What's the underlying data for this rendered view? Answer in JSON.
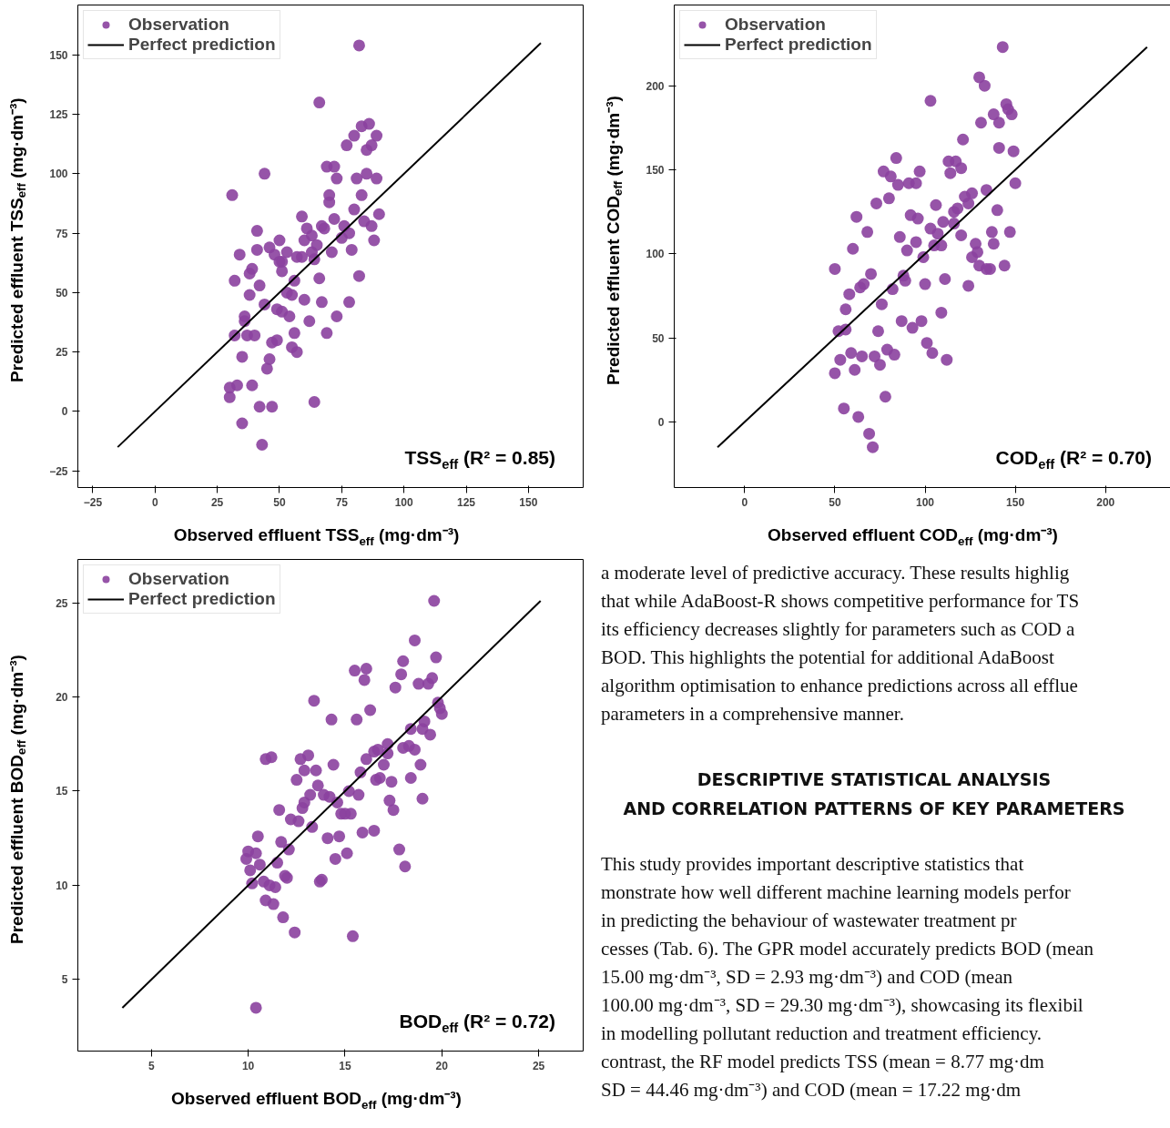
{
  "chart_data": [
    {
      "type": "scatter",
      "xlabel": "Observed effluent TSS$_{eff}$ (mg·dm⁻³)",
      "ylabel": "Predicted effluent TSS$_{eff}$ (mg·dm⁻³)",
      "annotations": [
        "TSS$_{eff}$ (R² = 0.85)"
      ],
      "xlim": [
        -31,
        172
      ],
      "ylim": [
        -32,
        171
      ],
      "xticks": [
        {
          "value": -25,
          "label": "−25"
        },
        0,
        25,
        50,
        75,
        100,
        125,
        150
      ],
      "yticks": [
        {
          "value": -25,
          "label": "−25"
        },
        0,
        25,
        50,
        75,
        100,
        125,
        150
      ],
      "grid": false,
      "legend": "top left",
      "series": [
        {
          "name": "Observation",
          "type": "scatter",
          "marker": "circle",
          "color": "#8b419f",
          "x": [
            82,
            66,
            83,
            86,
            80,
            89,
            77,
            87,
            85,
            69,
            72,
            44,
            73,
            81,
            85,
            89,
            31,
            70,
            70,
            83,
            80,
            90,
            59,
            72,
            84,
            87,
            67,
            68,
            76,
            61,
            63,
            78,
            75,
            41,
            60,
            50,
            65,
            88,
            46,
            41,
            53,
            63,
            71,
            79,
            34,
            48,
            57,
            59,
            64,
            51,
            50,
            39,
            38,
            51,
            32,
            66,
            82,
            56,
            42,
            38,
            53,
            55,
            60,
            67,
            78,
            44,
            49,
            51,
            54,
            73,
            36,
            36,
            62,
            32,
            37,
            40,
            56,
            69,
            49,
            47,
            55,
            57,
            35,
            46,
            45,
            33,
            30,
            39,
            30,
            42,
            47,
            64,
            35,
            43
          ],
          "values": [
            154,
            130,
            120,
            121,
            116,
            116,
            112,
            112,
            110,
            103,
            103,
            100,
            98,
            98,
            100,
            98,
            91,
            91,
            88,
            91,
            85,
            83,
            82,
            81,
            80,
            78,
            78,
            77,
            78,
            77,
            74,
            75,
            73,
            76,
            72,
            72,
            70,
            72,
            69,
            68,
            67,
            67,
            67,
            68,
            66,
            66,
            65,
            65,
            64,
            63,
            63,
            60,
            58,
            59,
            55,
            56,
            57,
            55,
            53,
            49,
            50,
            49,
            47,
            46,
            46,
            45,
            43,
            42,
            40,
            40,
            40,
            38,
            38,
            32,
            32,
            32,
            33,
            33,
            30,
            29,
            27,
            25,
            23,
            22,
            18,
            11,
            10,
            11,
            6,
            2,
            2,
            4,
            -5,
            -14
          ]
        },
        {
          "name": "Perfect prediction",
          "type": "line",
          "color": "#000000",
          "line_style": "solid",
          "x": [
            -15,
            155
          ],
          "values": [
            -15,
            155
          ]
        }
      ]
    },
    {
      "type": "scatter",
      "xlabel": "Observed effluent COD$_{eff}$ (mg·dm⁻³)",
      "ylabel": "Predicted effluent COD$_{eff}$ (mg·dm⁻³)",
      "annotations": [
        "COD$_{eff}$ (R² = 0.70)"
      ],
      "xlim": [
        -39,
        241
      ],
      "ylim": [
        -39,
        248
      ],
      "xticks": [
        0,
        50,
        100,
        150,
        200
      ],
      "yticks": [
        0,
        50,
        100,
        150,
        200
      ],
      "grid": false,
      "legend": "top left",
      "series": [
        {
          "name": "Observation",
          "type": "scatter",
          "marker": "circle",
          "color": "#8b419f",
          "x": [
            143,
            130,
            133,
            103,
            145,
            146,
            148,
            138,
            141,
            131,
            121,
            141,
            149,
            84,
            113,
            117,
            120,
            114,
            77,
            81,
            97,
            85,
            91,
            95,
            150,
            73,
            80,
            122,
            126,
            124,
            134,
            106,
            140,
            62,
            92,
            96,
            116,
            118,
            110,
            116,
            68,
            103,
            107,
            86,
            120,
            137,
            147,
            60,
            95,
            90,
            105,
            109,
            128,
            138,
            129,
            99,
            126,
            130,
            134,
            136,
            144,
            50,
            70,
            88,
            89,
            66,
            64,
            100,
            111,
            124,
            58,
            82,
            56,
            76,
            109,
            52,
            56,
            74,
            87,
            93,
            98,
            59,
            53,
            65,
            72,
            79,
            83,
            75,
            101,
            104,
            112,
            50,
            61,
            78,
            55,
            63,
            69,
            71
          ],
          "values": [
            223,
            205,
            200,
            191,
            189,
            186,
            183,
            183,
            178,
            178,
            168,
            163,
            161,
            157,
            155,
            155,
            151,
            148,
            149,
            146,
            149,
            141,
            142,
            142,
            142,
            130,
            133,
            134,
            136,
            130,
            138,
            129,
            126,
            122,
            123,
            121,
            125,
            127,
            119,
            118,
            113,
            115,
            112,
            110,
            111,
            113,
            113,
            103,
            107,
            102,
            105,
            105,
            106,
            106,
            101,
            98,
            98,
            93,
            91,
            91,
            93,
            91,
            88,
            87,
            84,
            82,
            80,
            82,
            85,
            81,
            76,
            79,
            67,
            70,
            65,
            54,
            55,
            54,
            60,
            56,
            60,
            41,
            37,
            39,
            39,
            43,
            40,
            34,
            47,
            41,
            37,
            29,
            31,
            15,
            8,
            3,
            -7,
            -15
          ]
        },
        {
          "name": "Perfect prediction",
          "type": "line",
          "color": "#000000",
          "line_style": "solid",
          "x": [
            -15,
            223
          ],
          "values": [
            -15,
            223
          ]
        }
      ]
    },
    {
      "type": "scatter",
      "xlabel": "Observed effluent BOD$_{eff}$ (mg·dm⁻³)",
      "ylabel": "Predicted effluent BOD$_{eff}$ (mg·dm⁻³)",
      "annotations": [
        "BOD$_{eff}$ (R² = 0.72)"
      ],
      "xlim": [
        1.2,
        27.3
      ],
      "ylim": [
        1.2,
        27.3
      ],
      "xticks": [
        5,
        10,
        15,
        20,
        25
      ],
      "yticks": [
        5,
        10,
        15,
        20,
        25
      ],
      "grid": false,
      "legend": "top left",
      "series": [
        {
          "name": "Observation",
          "type": "scatter",
          "marker": "circle",
          "color": "#8b419f",
          "x": [
            19.6,
            18.6,
            18.0,
            19.7,
            15.5,
            16.1,
            16.0,
            17.9,
            17.6,
            18.8,
            19.3,
            19.5,
            13.4,
            19.8,
            19.9,
            20.0,
            14.3,
            15.6,
            16.3,
            18.4,
            19.1,
            19.4,
            19.0,
            10.9,
            11.2,
            12.7,
            13.1,
            12.9,
            13.5,
            14.4,
            12.5,
            15.8,
            16.1,
            16.5,
            16.7,
            17.2,
            17.2,
            17.0,
            18.0,
            18.3,
            18.6,
            18.9,
            16.6,
            16.8,
            17.4,
            18.4,
            13.6,
            13.9,
            14.2,
            13.2,
            12.9,
            12.8,
            14.6,
            15.2,
            15.7,
            11.6,
            12.2,
            12.6,
            14.8,
            15.3,
            15.0,
            17.3,
            17.5,
            19.0,
            13.3,
            10.5,
            11.7,
            12.1,
            14.1,
            14.7,
            15.9,
            16.5,
            10.0,
            10.4,
            9.9,
            10.6,
            10.1,
            11.5,
            14.5,
            15.1,
            17.8,
            18.1,
            11.9,
            12.0,
            13.7,
            13.8,
            10.2,
            10.8,
            11.1,
            11.4,
            10.9,
            11.3,
            11.8,
            12.4,
            15.4,
            10.4
          ],
          "values": [
            25.1,
            23.0,
            21.9,
            22.1,
            21.4,
            21.5,
            20.9,
            21.2,
            20.5,
            20.7,
            20.7,
            21.0,
            19.8,
            19.7,
            19.4,
            19.1,
            18.8,
            18.8,
            19.3,
            18.3,
            18.7,
            18.0,
            18.3,
            16.7,
            16.8,
            16.7,
            16.9,
            16.1,
            16.1,
            16.4,
            15.6,
            16.0,
            16.7,
            17.1,
            17.2,
            17.5,
            17.0,
            16.4,
            17.3,
            17.4,
            17.2,
            16.4,
            15.6,
            15.7,
            15.5,
            15.7,
            15.3,
            14.8,
            14.7,
            14.8,
            14.4,
            14.1,
            14.4,
            15.0,
            14.8,
            14.0,
            13.5,
            13.4,
            13.8,
            13.8,
            13.8,
            14.5,
            14.0,
            14.6,
            13.1,
            12.6,
            12.3,
            11.9,
            12.5,
            12.6,
            12.8,
            12.9,
            11.8,
            11.7,
            11.4,
            11.1,
            10.8,
            11.2,
            11.4,
            11.7,
            11.9,
            11.0,
            10.5,
            10.4,
            10.2,
            10.3,
            10.1,
            10.2,
            10.0,
            9.9,
            9.2,
            9.0,
            8.3,
            7.5,
            7.3,
            3.5
          ]
        },
        {
          "name": "Perfect prediction",
          "type": "line",
          "color": "#000000",
          "line_style": "solid",
          "x": [
            3.5,
            25.1
          ],
          "values": [
            3.5,
            25.1
          ]
        }
      ]
    },
    {
      "type": "other",
      "title": "DESCRIPTIVE STATISTICAL ANALYSIS\nAND CORRELATION PATTERNS OF KEY PARAMETERS",
      "annotations": [
        "a moderate level of predictive accuracy. These results highlig",
        "that while AdaBoost-R shows competitive performance for TS",
        "its efficiency decreases slightly for parameters such as COD a",
        "BOD. This highlights the potential for additional AdaBoost",
        "algorithm optimisation to enhance predictions across all efflue",
        "parameters in a comprehensive manner.",
        "This study provides important descriptive statistics that",
        "monstrate how well different machine learning models perfor",
        "in predicting the behaviour of wastewater treatment pr",
        "cesses (Tab. 6). The GPR model accurately predicts BOD (mean",
        "15.00 mg·dm⁻³, SD = 2.93 mg·dm⁻³) and COD (mean",
        "100.00 mg·dm⁻³, SD = 29.30 mg·dm⁻³), showcasing its flexibil",
        "in modelling pollutant reduction and treatment efficiency.",
        "contrast, the RF model predicts TSS (mean = 8.77 mg·dm",
        "SD = 44.46 mg·dm⁻³) and COD (mean = 17.22 mg·dm"
      ]
    }
  ]
}
